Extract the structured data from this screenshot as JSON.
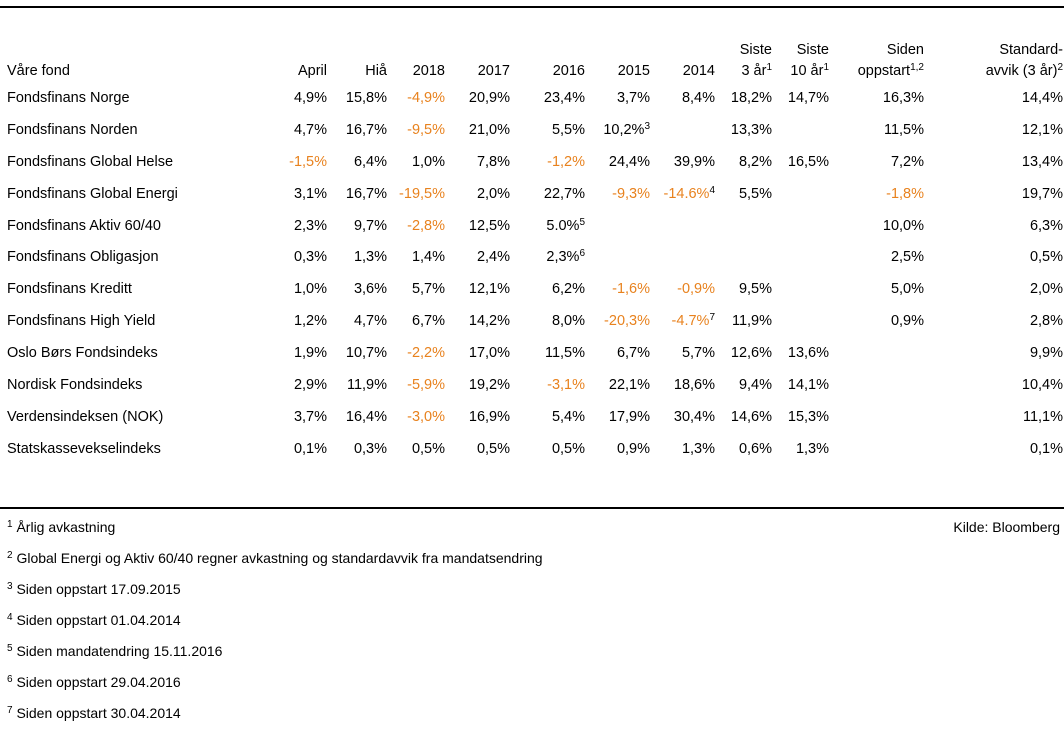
{
  "columns": [
    "Våre fond",
    "April",
    "Hiå",
    "2018",
    "2017",
    "2016",
    "2015",
    "2014",
    [
      "Siste",
      "3 år"
    ],
    [
      "Siste",
      "10 år"
    ],
    [
      "Siden",
      "oppstart"
    ],
    [
      "Standard-",
      "avvik (3 år)"
    ]
  ],
  "column_sups": [
    "",
    "",
    "",
    "",
    "",
    "",
    "",
    "",
    "1",
    "1",
    "1,2",
    "2"
  ],
  "rows": [
    {
      "name": "Fondsfinans Norge",
      "values": [
        "4,9%",
        "15,8%",
        "-4,9%",
        "20,9%",
        "23,4%",
        "3,7%",
        "8,4%",
        "18,2%",
        "14,7%",
        "16,3%",
        "14,4%"
      ],
      "sups": {}
    },
    {
      "name": "Fondsfinans Norden",
      "values": [
        "4,7%",
        "16,7%",
        "-9,5%",
        "21,0%",
        "5,5%",
        "10,2%",
        "",
        "13,3%",
        "",
        "11,5%",
        "12,1%"
      ],
      "sups": {
        "5": "3"
      }
    },
    {
      "name": "Fondsfinans Global Helse",
      "values": [
        "-1,5%",
        "6,4%",
        "1,0%",
        "7,8%",
        "-1,2%",
        "24,4%",
        "39,9%",
        "8,2%",
        "16,5%",
        "7,2%",
        "13,4%"
      ],
      "sups": {}
    },
    {
      "name": "Fondsfinans Global Energi",
      "values": [
        "3,1%",
        "16,7%",
        "-19,5%",
        "2,0%",
        "22,7%",
        "-9,3%",
        "-14.6%",
        "5,5%",
        "",
        "-1,8%",
        "19,7%"
      ],
      "sups": {
        "6": "4"
      }
    },
    {
      "name": "Fondsfinans Aktiv 60/40",
      "values": [
        "2,3%",
        "9,7%",
        "-2,8%",
        "12,5%",
        "5.0%",
        "",
        "",
        "",
        "",
        "10,0%",
        "6,3%"
      ],
      "sups": {
        "4": "5"
      }
    },
    {
      "name": "Fondsfinans Obligasjon",
      "values": [
        "0,3%",
        "1,3%",
        "1,4%",
        "2,4%",
        "2,3%",
        "",
        "",
        "",
        "",
        "2,5%",
        "0,5%"
      ],
      "sups": {
        "4": "6"
      }
    },
    {
      "name": "Fondsfinans Kreditt",
      "values": [
        "1,0%",
        "3,6%",
        "5,7%",
        "12,1%",
        "6,2%",
        "-1,6%",
        "-0,9%",
        "9,5%",
        "",
        "5,0%",
        "2,0%"
      ],
      "sups": {}
    },
    {
      "name": "Fondsfinans High Yield",
      "values": [
        "1,2%",
        "4,7%",
        "6,7%",
        "14,2%",
        "8,0%",
        "-20,3%",
        "-4.7%",
        "11,9%",
        "",
        "0,9%",
        "2,8%"
      ],
      "sups": {
        "6": "7"
      }
    },
    {
      "name": "Oslo Børs Fondsindeks",
      "values": [
        "1,9%",
        "10,7%",
        "-2,2%",
        "17,0%",
        "11,5%",
        "6,7%",
        "5,7%",
        "12,6%",
        "13,6%",
        "",
        "9,9%"
      ],
      "sups": {}
    },
    {
      "name": "Nordisk Fondsindeks",
      "values": [
        "2,9%",
        "11,9%",
        "-5,9%",
        "19,2%",
        "-3,1%",
        "22,1%",
        "18,6%",
        "9,4%",
        "14,1%",
        "",
        "10,4%"
      ],
      "sups": {}
    },
    {
      "name": "Verdensindeksen (NOK)",
      "values": [
        "3,7%",
        "16,4%",
        "-3,0%",
        "16,9%",
        "5,4%",
        "17,9%",
        "30,4%",
        "14,6%",
        "15,3%",
        "",
        "11,1%"
      ],
      "sups": {}
    },
    {
      "name": "Statskassevekselindeks",
      "values": [
        "0,1%",
        "0,3%",
        "0,5%",
        "0,5%",
        "0,5%",
        "0,9%",
        "1,3%",
        "0,6%",
        "1,3%",
        "",
        "0,1%"
      ],
      "sups": {}
    }
  ],
  "negative_color": "#e8821e",
  "footnotes": [
    {
      "num": "1",
      "text": "Årlig avkastning"
    },
    {
      "num": "2",
      "text": "Global Energi og Aktiv 60/40 regner avkastning og standardavvik fra mandatsendring"
    },
    {
      "num": "3",
      "text": "Siden oppstart 17.09.2015"
    },
    {
      "num": "4",
      "text": "Siden oppstart 01.04.2014"
    },
    {
      "num": "5",
      "text": "Siden mandatendring 15.11.2016"
    },
    {
      "num": "6",
      "text": "Siden oppstart 29.04.2016"
    },
    {
      "num": "7",
      "text": "Siden oppstart 30.04.2014"
    }
  ],
  "source": "Kilde: Bloomberg"
}
